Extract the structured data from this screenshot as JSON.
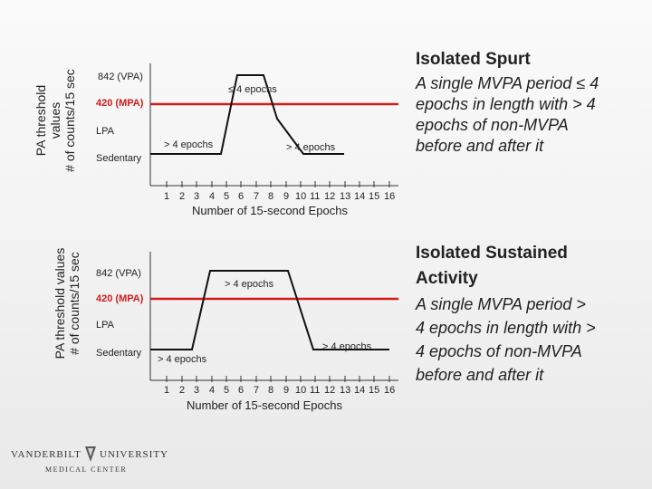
{
  "panels": [
    {
      "id": "spurt",
      "y_axis_label_1": "PA threshold",
      "y_axis_label_2": "values",
      "y_axis_label_3": "# of counts/15 sec",
      "levels": {
        "vpa": "842 (VPA)",
        "mpa": "420 (MPA)",
        "lpa": "LPA",
        "sedentary": "Sedentary"
      },
      "annotations": {
        "top": "≤ 4 epochs",
        "left": "> 4 epochs",
        "right": "> 4 epochs"
      },
      "x_ticks": [
        "1",
        "2",
        "3",
        "4",
        "5",
        "6",
        "7",
        "8",
        "9",
        "10",
        "11",
        "12",
        "13",
        "14",
        "15",
        "16"
      ],
      "x_axis_label": "Number of 15-second Epochs",
      "title": "Isolated Spurt",
      "description": [
        "A single MVPA period ≤ 4",
        "epochs in length with > 4",
        "epochs of non-MVPA",
        "before and after it"
      ]
    },
    {
      "id": "sustained",
      "y_axis_label_1": "PA threshold values",
      "y_axis_label_2": "# of counts/15 sec",
      "levels": {
        "vpa": "842 (VPA)",
        "mpa": "420 (MPA)",
        "lpa": "LPA",
        "sedentary": "Sedentary"
      },
      "annotations": {
        "top": "> 4 epochs",
        "left": "> 4 epochs",
        "right": "> 4 epochs"
      },
      "x_ticks": [
        "1",
        "2",
        "3",
        "4",
        "5",
        "6",
        "7",
        "8",
        "9",
        "10",
        "11",
        "12",
        "13",
        "14",
        "15",
        "16"
      ],
      "x_axis_label": "Number of 15-second Epochs",
      "title_1": "Isolated Sustained",
      "title_2": "Activity",
      "description": [
        "A single MVPA period >",
        "4 epochs in length with >",
        "4 epochs of non-MVPA",
        "before and after it"
      ]
    }
  ],
  "footer": {
    "logo_left": "VANDERBILT",
    "logo_right": "UNIVERSITY",
    "logo_sub": "MEDICAL CENTER"
  },
  "colors": {
    "threshold_line": "#d31a1a",
    "trace": "#111111"
  }
}
